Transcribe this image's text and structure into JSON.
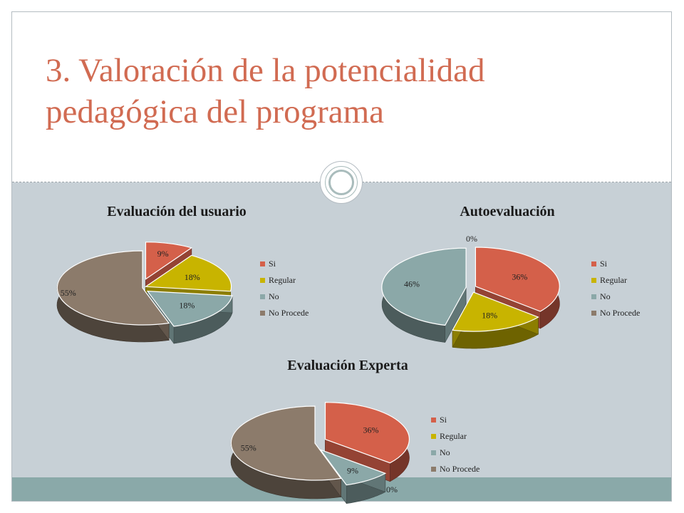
{
  "slide": {
    "title": "3. Valoración de la potencialidad pedagógica del programa"
  },
  "colors": {
    "title": "#d16b52",
    "Si": "#d4604a",
    "Regular": "#c8b400",
    "No": "#8ba8a8",
    "No Procede": "#8c7b6b"
  },
  "chart_data": [
    {
      "type": "pie",
      "title": "Evaluación del usuario",
      "legend_position": "right",
      "categories": [
        "Si",
        "Regular",
        "No",
        "No Procede"
      ],
      "values": [
        9,
        18,
        18,
        55
      ],
      "labels": [
        "9%",
        "18%",
        "18%",
        "55%"
      ]
    },
    {
      "type": "pie",
      "title": "Autoevaluación",
      "legend_position": "right",
      "categories": [
        "Si",
        "Regular",
        "No",
        "No Procede"
      ],
      "values": [
        36,
        18,
        46,
        0
      ],
      "labels": [
        "36%",
        "18%",
        "46%",
        "0%"
      ]
    },
    {
      "type": "pie",
      "title": "Evaluación Experta",
      "legend_position": "right",
      "categories": [
        "Si",
        "Regular",
        "No",
        "No Procede"
      ],
      "values": [
        36,
        0,
        9,
        55
      ],
      "labels": [
        "36%",
        "0%",
        "9%",
        "55%"
      ]
    }
  ]
}
